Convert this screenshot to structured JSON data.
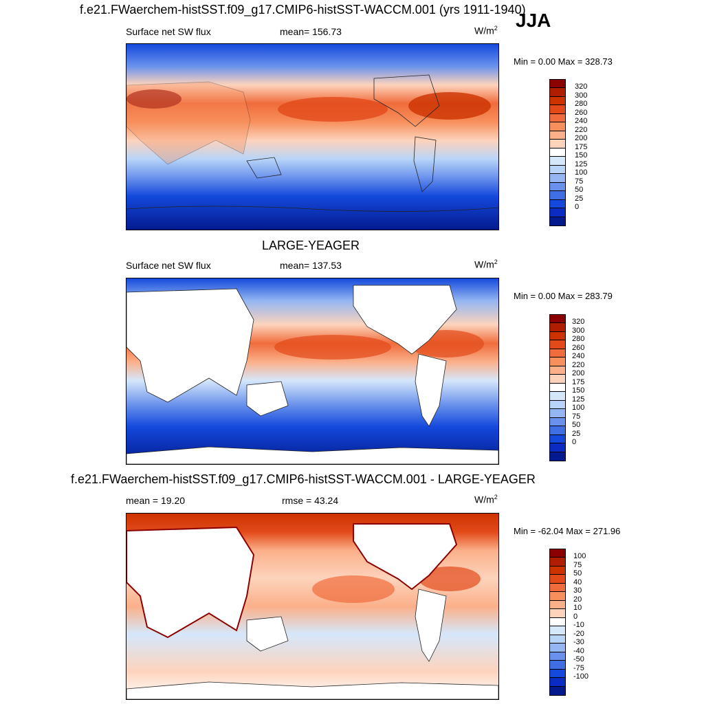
{
  "season": "JJA",
  "panels": [
    {
      "title": "f.e21.FWaerchem-histSST.f09_g17.CMIP6-histSST-WACCM.001 (yrs 1911-1940)",
      "left_label": "Surface net SW flux",
      "center_label": "mean= 156.73",
      "units": "W/m",
      "units_sup": "2",
      "minmax": "Min =   0.00 Max = 328.73",
      "land_masked": false,
      "colorbar": {
        "labels": [
          "320",
          "300",
          "280",
          "260",
          "240",
          "220",
          "200",
          "175",
          "150",
          "125",
          "100",
          "75",
          "50",
          "25",
          "0"
        ],
        "colors": [
          "#8b0000",
          "#b01e00",
          "#cc3300",
          "#e24a1a",
          "#f06c3c",
          "#f7905c",
          "#fbb08a",
          "#fdd3bc",
          "#ffffff",
          "#d5e7fb",
          "#b8d4f8",
          "#94b6f2",
          "#6a92ec",
          "#3f6fe3",
          "#1449dc",
          "#0a2cc2",
          "#031a8e"
        ]
      }
    },
    {
      "title": "LARGE-YEAGER",
      "left_label": "Surface net SW flux",
      "center_label": "mean= 137.53",
      "units": "W/m",
      "units_sup": "2",
      "minmax": "Min =   0.00 Max = 283.79",
      "land_masked": true,
      "colorbar": {
        "labels": [
          "320",
          "300",
          "280",
          "260",
          "240",
          "220",
          "200",
          "175",
          "150",
          "125",
          "100",
          "75",
          "50",
          "25",
          "0"
        ],
        "colors": [
          "#8b0000",
          "#b01e00",
          "#cc3300",
          "#e24a1a",
          "#f06c3c",
          "#f7905c",
          "#fbb08a",
          "#fdd3bc",
          "#ffffff",
          "#d5e7fb",
          "#b8d4f8",
          "#94b6f2",
          "#6a92ec",
          "#3f6fe3",
          "#1449dc",
          "#0a2cc2",
          "#031a8e"
        ]
      }
    },
    {
      "title": "f.e21.FWaerchem-histSST.f09_g17.CMIP6-histSST-WACCM.001 - LARGE-YEAGER",
      "left_label": "mean =  19.20",
      "center_label": "rmse =  43.24",
      "units": "W/m",
      "units_sup": "2",
      "minmax": "Min = -62.04 Max = 271.96",
      "land_masked": true,
      "colorbar": {
        "labels": [
          "100",
          "75",
          "50",
          "40",
          "30",
          "20",
          "10",
          "0",
          "-10",
          "-20",
          "-30",
          "-40",
          "-50",
          "-75",
          "-100"
        ],
        "colors": [
          "#8b0000",
          "#b01e00",
          "#cc3300",
          "#e24a1a",
          "#f06c3c",
          "#f7905c",
          "#fbb08a",
          "#fdd3bc",
          "#ffffff",
          "#d5e7fb",
          "#b8d4f8",
          "#94b6f2",
          "#6a92ec",
          "#3f6fe3",
          "#1449dc",
          "#0a2cc2",
          "#031a8e"
        ]
      }
    }
  ]
}
